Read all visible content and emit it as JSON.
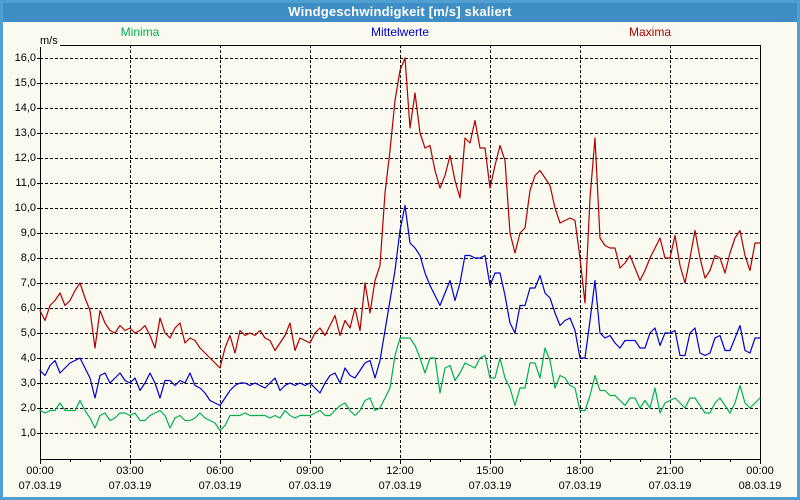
{
  "window": {
    "title": "Windgeschwindigkeit [m/s] skaliert"
  },
  "colors": {
    "frame": "#4f9fd2",
    "titlebar_bg": "#3e8ec5",
    "titlebar_text": "#ffffff",
    "background": "#fafaf0",
    "grid": "#000000",
    "minima": "#00b050",
    "mittelwerte": "#0000d0",
    "maxima": "#b00000"
  },
  "chart_data": {
    "type": "line",
    "title": "Windgeschwindigkeit [m/s] skaliert",
    "xlabel": "",
    "ylabel": "m/s",
    "ylim": [
      0,
      16.5
    ],
    "grid": "dashed both axes",
    "legend_position": "top",
    "x_start_minutes": 0,
    "x_step_minutes": 10,
    "x_ticks": [
      {
        "time": "00:00",
        "date": "07.03.19"
      },
      {
        "time": "03:00",
        "date": "07.03.19"
      },
      {
        "time": "06:00",
        "date": "07.03.19"
      },
      {
        "time": "09:00",
        "date": "07.03.19"
      },
      {
        "time": "12:00",
        "date": "07.03.19"
      },
      {
        "time": "15:00",
        "date": "07.03.19"
      },
      {
        "time": "18:00",
        "date": "07.03.19"
      },
      {
        "time": "21:00",
        "date": "07.03.19"
      },
      {
        "time": "00:00",
        "date": "08.03.19"
      }
    ],
    "y_tick_labels": [
      "1,0",
      "2,0",
      "3,0",
      "4,0",
      "5,0",
      "6,0",
      "7,0",
      "8,0",
      "9,0",
      "10,0",
      "11,0",
      "12,0",
      "13,0",
      "14,0",
      "15,0",
      "16,0"
    ],
    "series": [
      {
        "name": "Minima",
        "color": "#00b050",
        "values": [
          1.9,
          1.8,
          1.9,
          1.9,
          2.2,
          1.9,
          1.9,
          1.9,
          2.3,
          1.9,
          1.6,
          1.2,
          1.7,
          1.8,
          1.5,
          1.6,
          1.8,
          1.8,
          1.7,
          1.8,
          1.5,
          1.5,
          1.7,
          1.8,
          1.9,
          1.7,
          1.2,
          1.6,
          1.7,
          1.5,
          1.5,
          1.6,
          1.8,
          1.6,
          1.5,
          1.4,
          1.1,
          1.3,
          1.7,
          1.7,
          1.7,
          1.8,
          1.7,
          1.7,
          1.7,
          1.7,
          1.6,
          1.7,
          1.6,
          1.9,
          1.7,
          1.6,
          1.7,
          1.7,
          1.7,
          1.8,
          1.9,
          1.7,
          1.7,
          1.9,
          2.1,
          2.2,
          1.9,
          1.7,
          1.9,
          2.3,
          2.4,
          1.9,
          2.0,
          2.4,
          2.8,
          4.1,
          4.8,
          4.8,
          4.8,
          4.5,
          4.0,
          3.4,
          4.0,
          4.0,
          2.6,
          3.6,
          3.7,
          3.1,
          3.4,
          3.8,
          3.7,
          3.6,
          4.0,
          4.1,
          3.2,
          3.2,
          4.0,
          3.2,
          2.8,
          2.1,
          2.8,
          2.8,
          3.8,
          3.8,
          3.2,
          4.4,
          3.9,
          2.8,
          3.3,
          3.2,
          2.9,
          2.8,
          1.9,
          1.9,
          2.5,
          3.3,
          2.7,
          2.7,
          2.5,
          2.5,
          2.3,
          2.1,
          2.4,
          2.4,
          2.0,
          2.3,
          2.0,
          2.8,
          1.8,
          2.2,
          2.3,
          2.4,
          2.2,
          2.0,
          2.4,
          2.4,
          2.1,
          1.8,
          1.8,
          2.2,
          2.4,
          2.1,
          1.8,
          2.2,
          2.9,
          2.2,
          2.0,
          2.2,
          2.4
        ]
      },
      {
        "name": "Mittelwerte",
        "color": "#0000d0",
        "values": [
          3.5,
          3.3,
          3.7,
          3.9,
          3.4,
          3.6,
          3.8,
          3.9,
          4.0,
          3.6,
          3.2,
          2.4,
          3.3,
          3.4,
          3.0,
          3.2,
          3.4,
          3.1,
          3.0,
          3.2,
          2.7,
          3.0,
          3.4,
          3.0,
          2.4,
          3.1,
          3.1,
          2.9,
          3.1,
          3.0,
          3.4,
          2.9,
          2.8,
          2.6,
          2.3,
          2.2,
          2.1,
          2.4,
          2.7,
          2.9,
          3.0,
          3.0,
          2.9,
          3.0,
          2.9,
          2.8,
          3.0,
          3.2,
          2.7,
          2.9,
          3.0,
          2.9,
          3.0,
          2.9,
          3.0,
          2.8,
          2.6,
          3.0,
          3.3,
          3.4,
          3.0,
          3.6,
          3.3,
          3.2,
          3.5,
          3.8,
          3.9,
          3.2,
          3.9,
          5.1,
          6.3,
          7.5,
          9.1,
          10.1,
          8.6,
          8.4,
          8.1,
          7.4,
          6.9,
          6.5,
          6.1,
          6.6,
          7.1,
          6.3,
          7.0,
          8.1,
          8.1,
          8.0,
          8.0,
          8.1,
          6.9,
          7.4,
          7.4,
          6.5,
          5.4,
          5.0,
          6.1,
          6.1,
          6.8,
          6.8,
          7.3,
          6.6,
          6.4,
          5.8,
          5.3,
          5.5,
          5.6,
          5.1,
          4.0,
          4.0,
          5.5,
          7.1,
          5.0,
          4.8,
          4.9,
          4.6,
          4.4,
          4.7,
          4.7,
          4.7,
          4.4,
          4.4,
          5.0,
          5.2,
          4.5,
          5.0,
          5.0,
          5.1,
          4.1,
          4.1,
          5.0,
          5.2,
          4.2,
          4.1,
          4.2,
          4.8,
          4.9,
          4.3,
          4.3,
          4.8,
          5.3,
          4.3,
          4.2,
          4.8,
          4.8
        ]
      },
      {
        "name": "Maxima",
        "color": "#b00000",
        "values": [
          5.9,
          5.5,
          6.1,
          6.3,
          6.6,
          6.1,
          6.3,
          6.7,
          7.0,
          6.4,
          5.9,
          4.4,
          5.9,
          5.4,
          5.1,
          5.0,
          5.3,
          5.1,
          5.2,
          5.0,
          5.1,
          5.3,
          4.9,
          4.4,
          5.6,
          5.0,
          4.8,
          5.2,
          5.4,
          4.6,
          4.8,
          4.7,
          4.4,
          4.2,
          4.0,
          3.8,
          3.6,
          4.4,
          4.9,
          4.2,
          5.1,
          4.9,
          5.0,
          4.9,
          5.1,
          4.8,
          4.7,
          4.3,
          4.6,
          4.9,
          5.4,
          4.3,
          4.8,
          4.7,
          4.6,
          5.0,
          5.2,
          4.9,
          5.3,
          5.7,
          4.9,
          5.5,
          5.2,
          6.0,
          5.1,
          7.0,
          5.8,
          7.1,
          7.7,
          10.6,
          12.3,
          14.3,
          15.5,
          16.0,
          13.2,
          14.6,
          13.0,
          12.4,
          12.5,
          11.5,
          10.8,
          11.3,
          12.1,
          11.1,
          10.4,
          12.8,
          12.6,
          13.5,
          12.4,
          12.4,
          10.8,
          11.7,
          12.5,
          11.9,
          9.0,
          8.2,
          9.0,
          9.2,
          10.7,
          11.3,
          11.5,
          11.2,
          10.9,
          10.0,
          9.4,
          9.5,
          9.6,
          9.5,
          8.0,
          6.2,
          10.4,
          12.8,
          8.8,
          8.5,
          8.4,
          8.4,
          7.6,
          7.8,
          8.1,
          7.6,
          7.1,
          7.5,
          8.0,
          8.4,
          8.8,
          8.0,
          8.0,
          8.9,
          7.7,
          7.0,
          8.0,
          9.1,
          8.0,
          7.2,
          7.5,
          8.1,
          8.0,
          7.4,
          8.2,
          8.8,
          9.1,
          8.1,
          7.5,
          8.6,
          8.6
        ]
      }
    ]
  }
}
